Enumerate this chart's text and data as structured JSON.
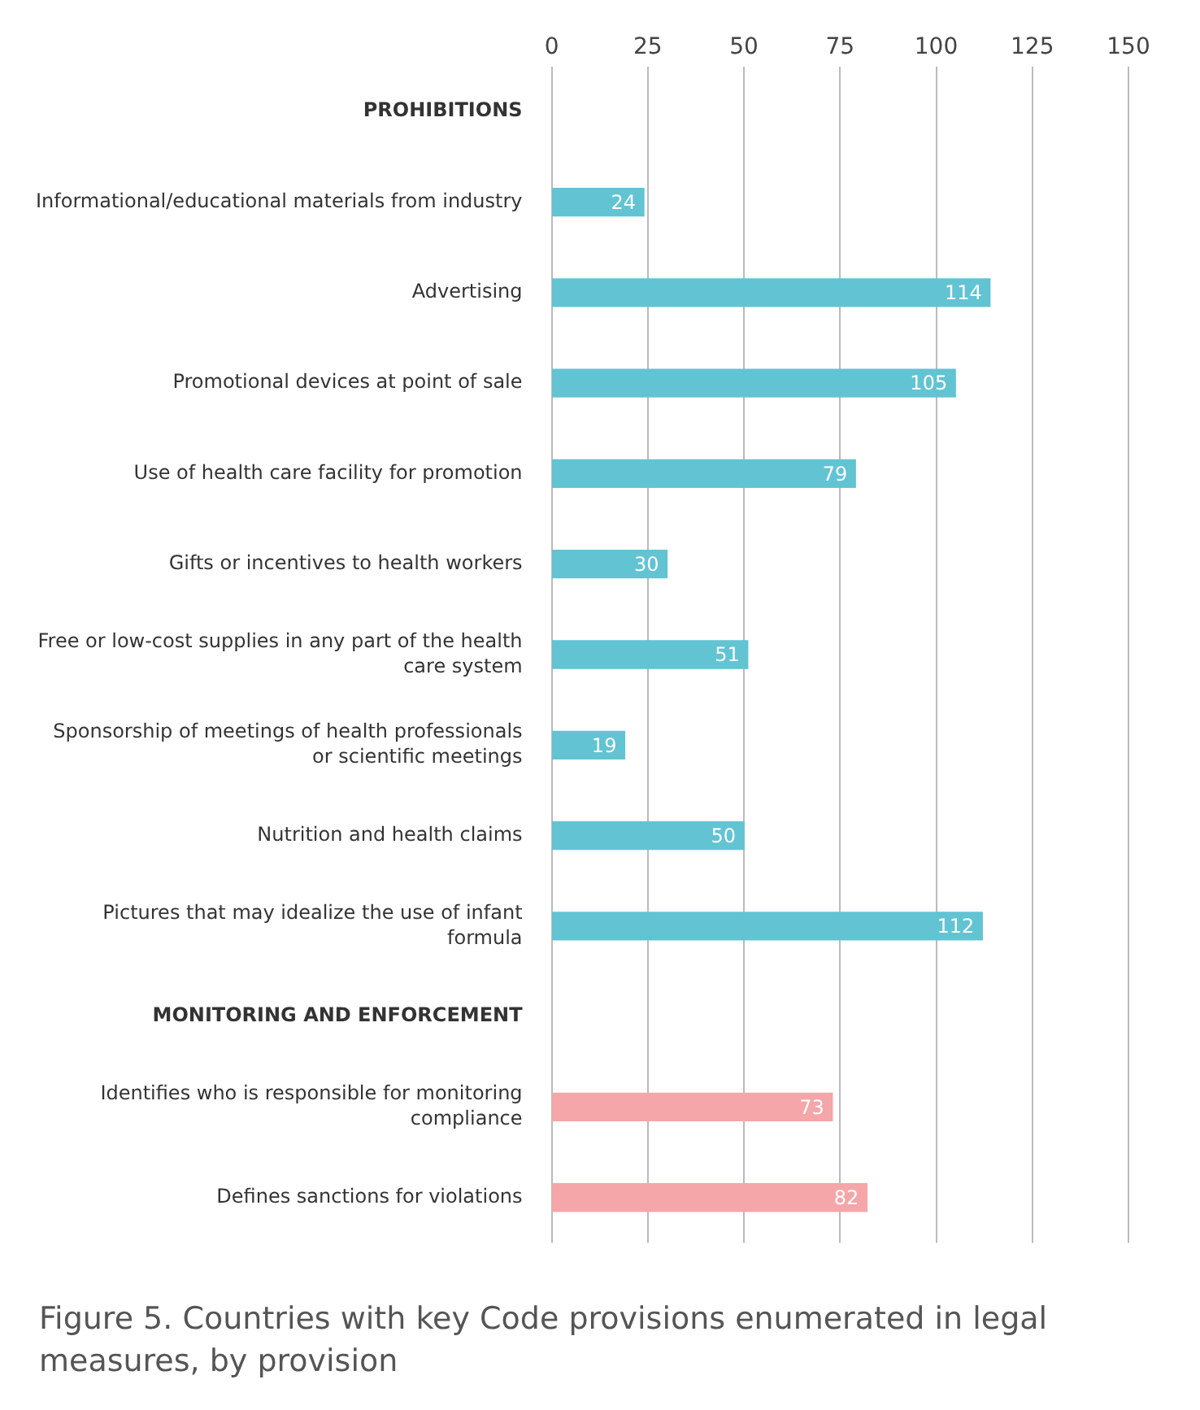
{
  "chart_data": {
    "type": "bar",
    "orientation": "horizontal",
    "title": "Figure 5. Countries with key Code provisions enumerated in legal measures, by provision",
    "categories": [
      "PROHIBITIONS",
      "Informational/educational materials from industry",
      "Advertising",
      "Promotional devices at point of sale",
      "Use of health care facility for promotion",
      "Gifts or incentives to health workers",
      "Free or low-cost supplies in any part of the health care system",
      "Sponsorship of meetings of health professionals or scientific meetings",
      "Nutrition and health claims",
      "Pictures that may idealize the use of infant formula",
      "MONITORING AND ENFORCEMENT",
      "Identifies who is responsible for monitoring compliance",
      "Defines sanctions for violations"
    ],
    "values": [
      null,
      24,
      114,
      105,
      79,
      30,
      51,
      19,
      50,
      112,
      null,
      73,
      82
    ],
    "colors": [
      "#62c3d3",
      "#62c3d3",
      "#62c3d3",
      "#62c3d3",
      "#62c3d3",
      "#62c3d3",
      "#62c3d3",
      "#62c3d3",
      "#62c3d3",
      "#62c3d3",
      "#f4a6a8",
      "#f4a6a8",
      "#f4a6a8"
    ],
    "xlim": [
      0,
      150
    ],
    "xticks": [
      0,
      25,
      50,
      75,
      100,
      125,
      150
    ],
    "grid": "x",
    "data_labels": true
  }
}
